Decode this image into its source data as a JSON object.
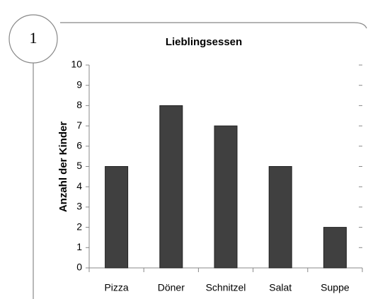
{
  "exercise": "1",
  "chart_data": {
    "type": "bar",
    "title": "Lieblingsessen",
    "y_label": "Anzahl der Kinder",
    "categories": [
      "Pizza",
      "Döner",
      "Schnitzel",
      "Salat",
      "Suppe"
    ],
    "values": [
      5,
      8,
      7,
      5,
      2
    ],
    "color": "#404040",
    "ylim": [
      0,
      10
    ],
    "yticks": [
      0,
      1,
      2,
      3,
      4,
      5,
      6,
      7,
      8,
      9,
      10
    ],
    "grid": false
  }
}
